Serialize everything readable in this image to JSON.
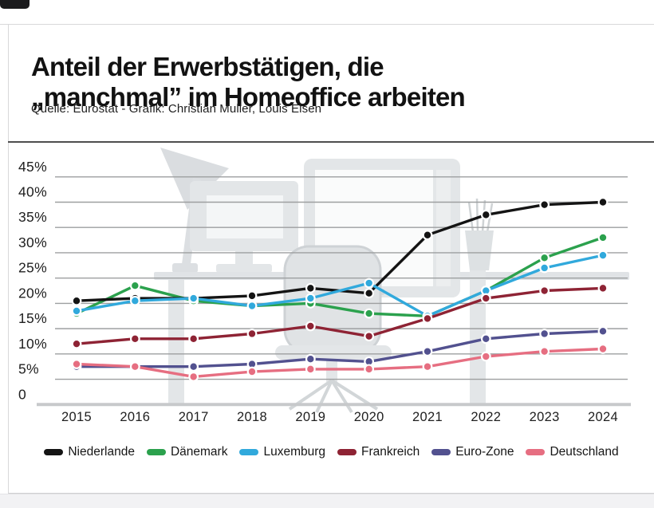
{
  "header": {
    "title_line1": "Anteil der Erwerbstätigen, die",
    "title_line2": "„manchmal” im Homeoffice arbeiten",
    "source": "Quelle: Eurostat - Grafik: Christian Muller, Louis Elsen"
  },
  "chart_data": {
    "type": "line",
    "x": [
      2015,
      2016,
      2017,
      2018,
      2019,
      2020,
      2021,
      2022,
      2023,
      2024
    ],
    "series": [
      {
        "name": "Niederlande",
        "color": "#141414",
        "values": [
          20.5,
          21,
          21,
          21.5,
          23,
          22,
          33.5,
          37.5,
          39.5,
          40
        ]
      },
      {
        "name": "Dänemark",
        "color": "#2ba14d",
        "values": [
          18,
          23.5,
          20.5,
          19.5,
          20,
          18,
          17.5,
          22.5,
          29,
          33
        ]
      },
      {
        "name": "Luxemburg",
        "color": "#31a9dc",
        "values": [
          18.5,
          20.5,
          21,
          19.5,
          21,
          24,
          17.5,
          22.5,
          27,
          29.5
        ]
      },
      {
        "name": "Frankreich",
        "color": "#8e2334",
        "values": [
          12,
          13,
          13,
          14,
          15.5,
          13.5,
          17,
          21,
          22.5,
          23
        ]
      },
      {
        "name": "Euro-Zone",
        "color": "#52518f",
        "values": [
          7.5,
          7.5,
          7.5,
          8,
          9,
          8.5,
          10.5,
          13,
          14,
          14.5
        ]
      },
      {
        "name": "Deutschland",
        "color": "#e66e81",
        "values": [
          8,
          7.5,
          5.5,
          6.5,
          7,
          7,
          7.5,
          9.5,
          10.5,
          11
        ]
      }
    ],
    "yticks": [
      {
        "label": "45%",
        "value": 45
      },
      {
        "label": "40%",
        "value": 40
      },
      {
        "label": "35%",
        "value": 35
      },
      {
        "label": "30%",
        "value": 30
      },
      {
        "label": "25%",
        "value": 25
      },
      {
        "label": "20%",
        "value": 20
      },
      {
        "label": "15%",
        "value": 15
      },
      {
        "label": "10%",
        "value": 10
      },
      {
        "label": "5%",
        "value": 5
      },
      {
        "label": "0",
        "value": 0
      }
    ],
    "ylim": [
      0,
      47
    ],
    "grid": true,
    "legend_position": "bottom",
    "ylabel": "",
    "xlabel": ""
  }
}
